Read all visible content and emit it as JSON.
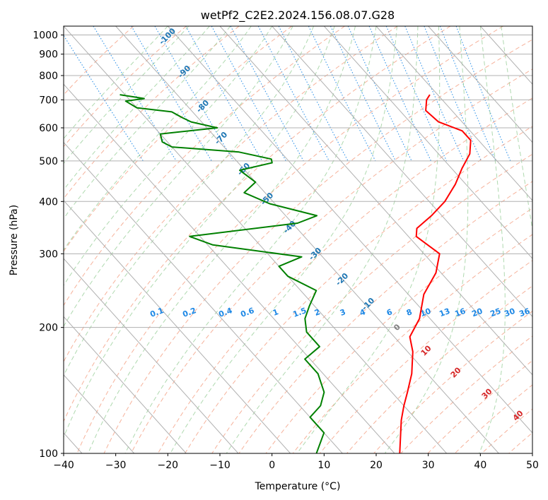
{
  "chart_data": {
    "type": "line",
    "diagram": "skew-T log-p",
    "title": "wetPf2_C2E2.2024.156.08.07.G28",
    "xlabel": "Temperature (°C)",
    "ylabel": "Pressure (hPa)",
    "xlim": [
      -40,
      50
    ],
    "ylim_hpa": [
      1050,
      100
    ],
    "grid": true,
    "x_ticks": [
      -40,
      -30,
      -20,
      -10,
      0,
      10,
      20,
      30,
      40,
      50
    ],
    "x_tick_labels": [
      "−40",
      "−30",
      "−20",
      "−10",
      "0",
      "10",
      "20",
      "30",
      "40",
      "50"
    ],
    "y_ticks": [
      100,
      200,
      300,
      400,
      500,
      600,
      700,
      800,
      900,
      1000
    ],
    "y_tick_labels": [
      "100",
      "200",
      "300",
      "400",
      "500",
      "600",
      "700",
      "800",
      "900",
      "1000"
    ],
    "series": [
      {
        "name": "temperature",
        "color": "#ff0000",
        "points": [
          {
            "p": 720,
            "t": 18.5
          },
          {
            "p": 700,
            "t": 17.0
          },
          {
            "p": 660,
            "t": 15.0
          },
          {
            "p": 620,
            "t": 15.5
          },
          {
            "p": 590,
            "t": 18.5
          },
          {
            "p": 560,
            "t": 18.5
          },
          {
            "p": 520,
            "t": 16.0
          },
          {
            "p": 480,
            "t": 12.0
          },
          {
            "p": 440,
            "t": 8.0
          },
          {
            "p": 400,
            "t": 3.0
          },
          {
            "p": 370,
            "t": -2.0
          },
          {
            "p": 345,
            "t": -7.0
          },
          {
            "p": 330,
            "t": -8.5
          },
          {
            "p": 300,
            "t": -7.0
          },
          {
            "p": 270,
            "t": -11.0
          },
          {
            "p": 240,
            "t": -17.0
          },
          {
            "p": 210,
            "t": -22.0
          },
          {
            "p": 190,
            "t": -27.0
          },
          {
            "p": 175,
            "t": -29.0
          },
          {
            "p": 155,
            "t": -33.0
          },
          {
            "p": 140,
            "t": -37.0
          },
          {
            "p": 130,
            "t": -40.0
          },
          {
            "p": 120,
            "t": -43.0
          },
          {
            "p": 100,
            "t": -49.0
          }
        ]
      },
      {
        "name": "dewpoint",
        "color": "#008000",
        "points": [
          {
            "p": 720,
            "t": -41.0
          },
          {
            "p": 705,
            "t": -37.0
          },
          {
            "p": 695,
            "t": -41.0
          },
          {
            "p": 670,
            "t": -40.0
          },
          {
            "p": 655,
            "t": -34.0
          },
          {
            "p": 635,
            "t": -33.0
          },
          {
            "p": 620,
            "t": -32.0
          },
          {
            "p": 600,
            "t": -28.0
          },
          {
            "p": 580,
            "t": -40.0
          },
          {
            "p": 555,
            "t": -41.0
          },
          {
            "p": 540,
            "t": -40.0
          },
          {
            "p": 525,
            "t": -28.0
          },
          {
            "p": 505,
            "t": -23.0
          },
          {
            "p": 495,
            "t": -23.5
          },
          {
            "p": 475,
            "t": -31.0
          },
          {
            "p": 445,
            "t": -30.0
          },
          {
            "p": 420,
            "t": -34.0
          },
          {
            "p": 395,
            "t": -31.0
          },
          {
            "p": 370,
            "t": -24.0
          },
          {
            "p": 355,
            "t": -29.0
          },
          {
            "p": 330,
            "t": -52.0
          },
          {
            "p": 315,
            "t": -49.0
          },
          {
            "p": 295,
            "t": -34.0
          },
          {
            "p": 280,
            "t": -40.0
          },
          {
            "p": 265,
            "t": -40.0
          },
          {
            "p": 245,
            "t": -37.0
          },
          {
            "p": 225,
            "t": -41.0
          },
          {
            "p": 210,
            "t": -44.0
          },
          {
            "p": 195,
            "t": -46.0
          },
          {
            "p": 180,
            "t": -46.0
          },
          {
            "p": 168,
            "t": -51.0
          },
          {
            "p": 155,
            "t": -51.0
          },
          {
            "p": 140,
            "t": -53.0
          },
          {
            "p": 130,
            "t": -56.0
          },
          {
            "p": 122,
            "t": -60.0
          },
          {
            "p": 112,
            "t": -60.0
          },
          {
            "p": 100,
            "t": -65.0
          }
        ]
      }
    ],
    "dry_adiabat_labels": [
      "-100",
      "-90",
      "-80",
      "-70",
      "-60",
      "-50",
      "-40",
      "-30",
      "-20",
      "-10"
    ],
    "moist_adiabat_labels": [
      "0",
      "10",
      "20",
      "30",
      "40"
    ],
    "mixing_ratio_labels": [
      "0.1",
      "0.2",
      "0.4",
      "0.6",
      "1",
      "1.5",
      "2",
      "3",
      "4",
      "6",
      "8",
      "10",
      "13",
      "16",
      "20",
      "25",
      "30",
      "36"
    ]
  }
}
